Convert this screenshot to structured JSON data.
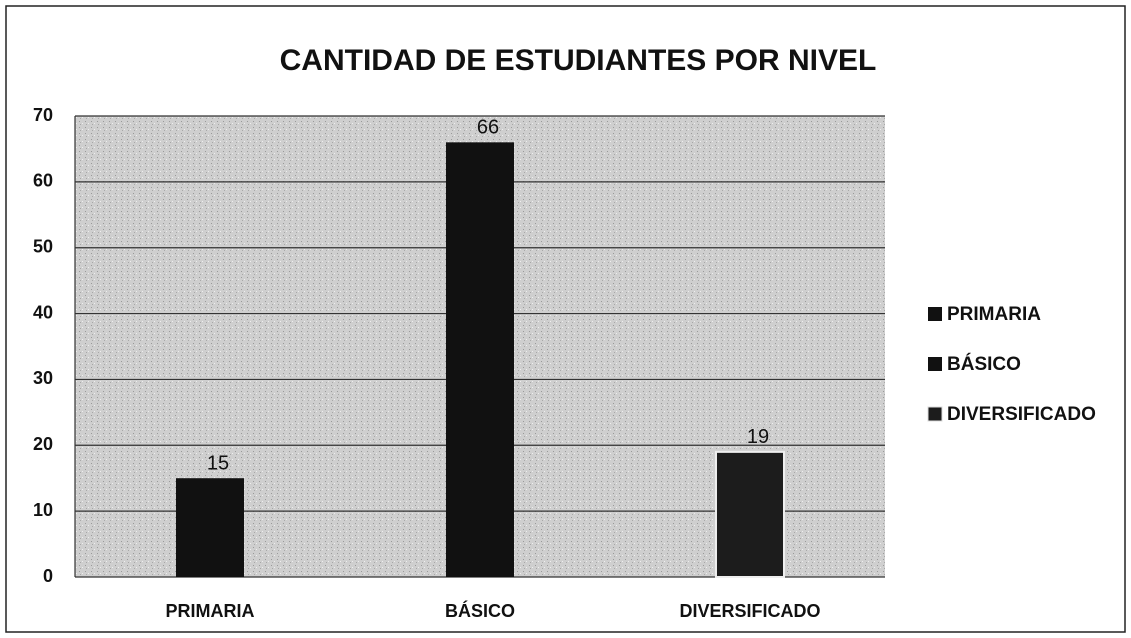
{
  "chart_data": {
    "type": "bar",
    "title": "CANTIDAD DE ESTUDIANTES POR NIVEL",
    "categories": [
      "PRIMARIA",
      "BÁSICO",
      "DIVERSIFICADO"
    ],
    "values": [
      15,
      66,
      19
    ],
    "colors": [
      "#111111",
      "#111111",
      "#1c1c1c"
    ],
    "ylim": [
      0,
      70
    ],
    "yticks": [
      0,
      10,
      20,
      30,
      40,
      50,
      60,
      70
    ],
    "grid": true,
    "legend": "right"
  }
}
